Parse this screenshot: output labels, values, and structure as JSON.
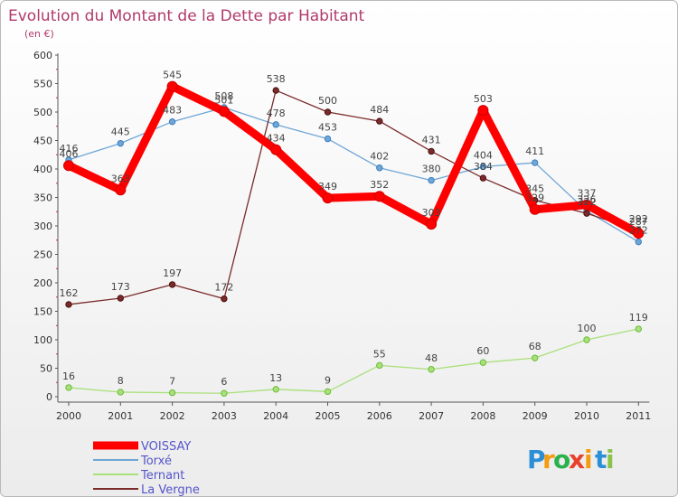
{
  "chart_data": {
    "type": "line",
    "title": "Evolution du Montant de la Dette par Habitant",
    "subtitle": "(en €)",
    "x": [
      "2000",
      "2001",
      "2002",
      "2003",
      "2004",
      "2005",
      "2006",
      "2007",
      "2008",
      "2009",
      "2010",
      "2011"
    ],
    "ylim": [
      0,
      600
    ],
    "yticks": [
      "0",
      "50",
      "100",
      "150",
      "200",
      "250",
      "300",
      "350",
      "400",
      "450",
      "500",
      "550",
      "600"
    ],
    "grid": false,
    "legend_position": "bottom-left",
    "series": [
      {
        "name": "VOISSAY",
        "color": "#ff0000",
        "values": [
          406,
          363,
          545,
          501,
          434,
          349,
          352,
          303,
          503,
          329,
          337,
          287
        ]
      },
      {
        "name": "Torxé",
        "color": "#6fa6d6",
        "values": [
          416,
          445,
          483,
          508,
          478,
          453,
          402,
          380,
          404,
          411,
          326,
          272
        ]
      },
      {
        "name": "Ternant",
        "color": "#a9e07a",
        "values": [
          16,
          8,
          7,
          6,
          13,
          9,
          55,
          48,
          60,
          68,
          100,
          119
        ]
      },
      {
        "name": "La Vergne",
        "color": "#7b2a2a",
        "values": [
          162,
          173,
          197,
          172,
          538,
          500,
          484,
          431,
          384,
          345,
          322,
          292
        ]
      }
    ]
  },
  "logo": {
    "letters": [
      "P",
      "r",
      "o",
      "x",
      "i",
      "t",
      "i"
    ],
    "colors": [
      "#2b8fd6",
      "#f39c12",
      "#2bb24c",
      "#e8412c",
      "#f39c12",
      "#2b8fd6",
      "#8bc34a"
    ]
  }
}
